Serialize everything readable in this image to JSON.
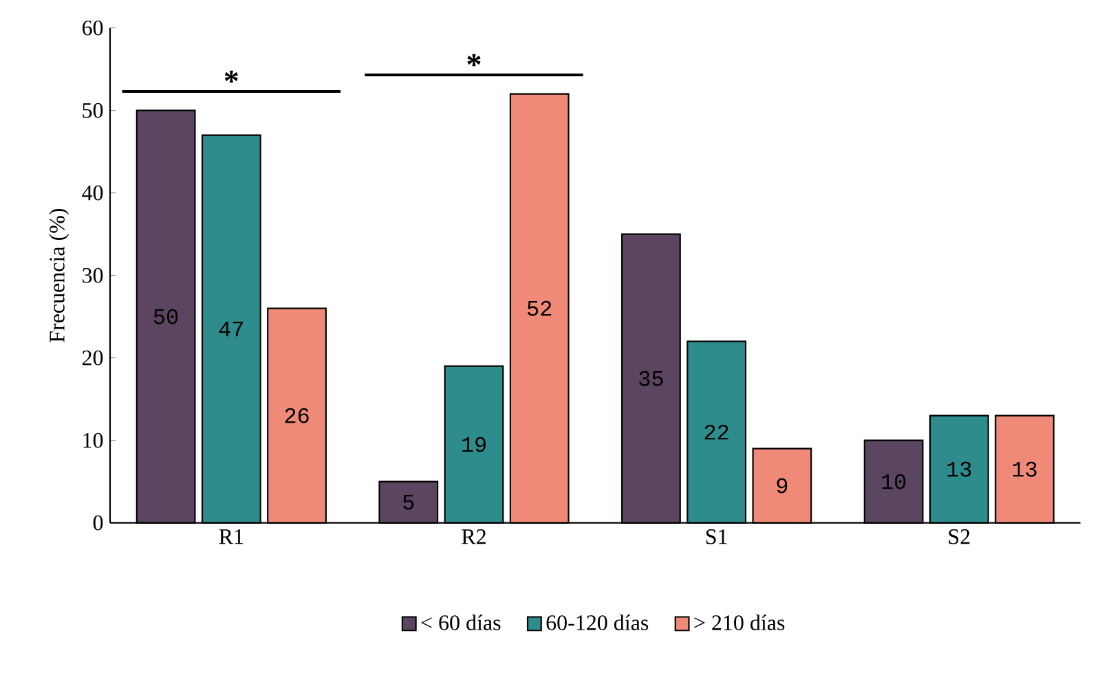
{
  "chart_data": {
    "type": "bar",
    "ylabel": "Frecuencia (%)",
    "categories": [
      "R1",
      "R2",
      "S1",
      "S2"
    ],
    "series": [
      {
        "name": "< 60 días",
        "color": "#5b4560",
        "values": [
          50,
          5,
          35,
          10
        ]
      },
      {
        "name": "60-120 días",
        "color": "#2e8c8c",
        "values": [
          47,
          19,
          22,
          13
        ]
      },
      {
        "name": "> 210 días",
        "color": "#f08a78",
        "values": [
          26,
          52,
          9,
          13
        ]
      }
    ],
    "ylim": [
      0,
      60
    ],
    "yticks": [
      0,
      10,
      20,
      30,
      40,
      50,
      60
    ],
    "data_labels": true,
    "legend": "bottom",
    "grid": false,
    "annotations": [
      "*",
      "*"
    ]
  }
}
